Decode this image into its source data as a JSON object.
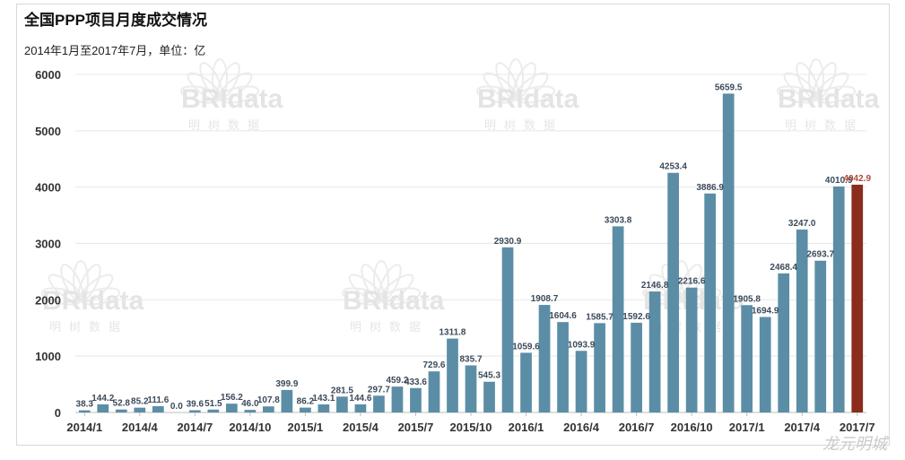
{
  "title": "全国PPP项目月度成交情况",
  "subtitle": "2014年1月至2017年7月，单位：亿",
  "watermark": {
    "brand": "BRIdata",
    "brand_cn": "明树数据"
  },
  "corner_mark": "龙元明城",
  "colors": {
    "bar": "#5b8ea6",
    "highlight": "#8b2c1c",
    "highlight_label": "#b04a35",
    "grid": "#e8e8e8"
  },
  "chart_data": {
    "type": "bar",
    "title": "全国PPP项目月度成交情况",
    "subtitle": "2014年1月至2017年7月，单位：亿",
    "ylim": [
      0,
      6000
    ],
    "yticks": [
      0,
      1000,
      2000,
      3000,
      4000,
      5000,
      6000
    ],
    "grid": true,
    "legend": "none",
    "x_tick_labels": [
      "2014/1",
      "2014/4",
      "2014/7",
      "2014/10",
      "2015/1",
      "2015/4",
      "2015/7",
      "2015/10",
      "2016/1",
      "2016/4",
      "2016/7",
      "2016/10",
      "2017/1",
      "2017/4",
      "2017/7"
    ],
    "categories": [
      "2014/1",
      "2014/2",
      "2014/3",
      "2014/4",
      "2014/5",
      "2014/6",
      "2014/7",
      "2014/8",
      "2014/9",
      "2014/10",
      "2014/11",
      "2014/12",
      "2015/1",
      "2015/2",
      "2015/3",
      "2015/4",
      "2015/5",
      "2015/6",
      "2015/7",
      "2015/8",
      "2015/9",
      "2015/10",
      "2015/11",
      "2015/12",
      "2016/1",
      "2016/2",
      "2016/3",
      "2016/4",
      "2016/5",
      "2016/6",
      "2016/7",
      "2016/8",
      "2016/9",
      "2016/10",
      "2016/11",
      "2016/12",
      "2017/1",
      "2017/2",
      "2017/3",
      "2017/4",
      "2017/5",
      "2017/6",
      "2017/7"
    ],
    "values": [
      38.3,
      144.2,
      52.8,
      85.2,
      111.6,
      0.0,
      39.6,
      51.5,
      156.2,
      46.0,
      107.8,
      399.9,
      86.2,
      143.1,
      281.5,
      144.6,
      297.7,
      459.2,
      433.6,
      729.6,
      1311.8,
      835.7,
      545.3,
      2930.9,
      1059.6,
      1908.7,
      1604.6,
      1093.9,
      1585.7,
      3303.8,
      1592.6,
      2146.8,
      4253.4,
      2216.6,
      3886.9,
      5659.5,
      1905.8,
      1694.9,
      2468.4,
      3247.0,
      2693.7,
      4010.9,
      4042.9
    ],
    "value_labels": [
      "38.3",
      "144.2",
      "52.8",
      "85.2",
      "111.6",
      "0.0",
      "39.6",
      "51.5",
      "156.2",
      "46.0",
      "107.8",
      "399.9",
      "86.2",
      "143.1",
      "281.5",
      "144.6",
      "297.7",
      "459.2",
      "433.6",
      "729.6",
      "1311.8",
      "835.7",
      "545.3",
      "2930.9",
      "1059.6",
      "1908.7",
      "1604.6",
      "1093.9",
      "1585.7",
      "3303.8",
      "1592.6",
      "2146.8",
      "4253.4",
      "2216.6",
      "3886.9",
      "5659.5",
      "1905.8",
      "1694.9",
      "2468.4",
      "3247.0",
      "2693.7",
      "4010.9",
      "4042.9"
    ],
    "highlight_index": 42
  }
}
